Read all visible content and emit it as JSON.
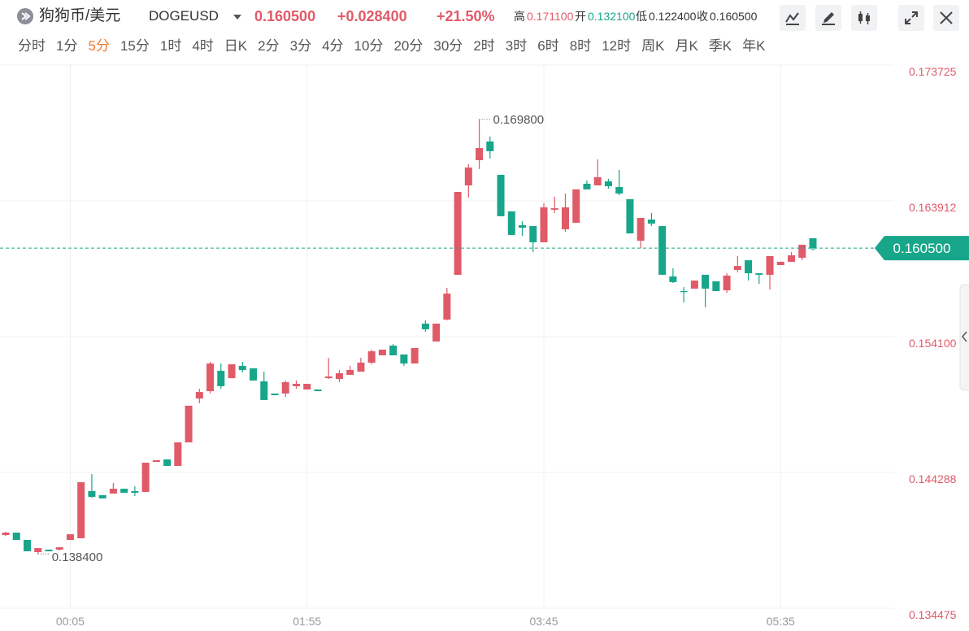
{
  "header": {
    "title": "狗狗币/美元",
    "symbol": "DOGEUSD",
    "price": "0.160500",
    "change": "+0.028400",
    "change_pct": "+21.50%",
    "stats": [
      {
        "label": "高",
        "value": "0.171100",
        "color": "#e05a68"
      },
      {
        "label": "开",
        "value": "0.132100",
        "color": "#17a68a"
      },
      {
        "label": "低",
        "value": "0.122400",
        "color": "#333333"
      },
      {
        "label": "收",
        "value": "0.160500",
        "color": "#333333"
      }
    ]
  },
  "intervals": [
    "分时",
    "1分",
    "5分",
    "15分",
    "1时",
    "4时",
    "日K",
    "2分",
    "3分",
    "4分",
    "10分",
    "20分",
    "30分",
    "2时",
    "3时",
    "6时",
    "8时",
    "12时",
    "周K",
    "月K",
    "季K",
    "年K"
  ],
  "active_interval": 2,
  "chart_data": {
    "type": "candlestick",
    "categories": [
      null,
      null,
      null,
      null,
      null,
      null,
      "00:05",
      null,
      null,
      null,
      null,
      null,
      null,
      null,
      null,
      null,
      null,
      null,
      null,
      null,
      null,
      null,
      null,
      null,
      null,
      null,
      null,
      null,
      "01:55",
      null,
      null,
      null,
      null,
      null,
      null,
      null,
      null,
      null,
      null,
      null,
      null,
      null,
      null,
      null,
      null,
      null,
      null,
      null,
      null,
      null,
      "03:45",
      null,
      null,
      null,
      null,
      null,
      null,
      null,
      null,
      null,
      null,
      null,
      null,
      null,
      null,
      null,
      null,
      null,
      null,
      null,
      null,
      null,
      "05:35",
      null,
      null,
      null
    ],
    "open": [
      0.13976,
      0.13994,
      0.13941,
      0.13853,
      0.13871,
      0.13871,
      0.13941,
      0.13953,
      0.14294,
      0.14264,
      0.14276,
      0.14311,
      0.14294,
      0.14288,
      0.14505,
      0.14523,
      0.14476,
      0.14646,
      0.14963,
      0.15016,
      0.15163,
      0.1511,
      0.15199,
      0.15181,
      0.15087,
      0.14999,
      0.14999,
      0.15052,
      0.15028,
      0.15028,
      0.1511,
      0.15104,
      0.15134,
      0.15157,
      0.15222,
      0.15275,
      0.15345,
      0.15281,
      0.15216,
      0.15504,
      0.15375,
      0.15533,
      0.15857,
      0.16503,
      0.16685,
      0.1682,
      0.16579,
      0.16315,
      0.16215,
      0.16209,
      0.16092,
      0.16327,
      0.16186,
      0.16233,
      0.16515,
      0.16503,
      0.16532,
      0.16491,
      0.16403,
      0.16103,
      0.16256,
      0.16209,
      0.15845,
      0.15739,
      0.15757,
      0.15857,
      0.1581,
      0.15745,
      0.15892,
      0.15962,
      0.15868,
      0.15857,
      0.15927,
      0.15951,
      0.1598,
      0.16121
    ],
    "high": [
      0.14,
      0.13994,
      0.13941,
      0.13882,
      0.13871,
      0.13888,
      0.13982,
      0.14358,
      0.14417,
      0.14264,
      0.14352,
      0.14311,
      0.14329,
      0.14499,
      0.14517,
      0.14523,
      0.14646,
      0.14911,
      0.15034,
      0.15228,
      0.15216,
      0.1521,
      0.15228,
      0.15181,
      0.15157,
      0.14999,
      0.15093,
      0.15093,
      0.15069,
      0.15028,
      0.15257,
      0.15169,
      0.15199,
      0.15257,
      0.15316,
      0.15316,
      0.15357,
      0.15281,
      0.15328,
      0.15528,
      0.15504,
      0.15763,
      0.16456,
      0.16656,
      0.1698,
      0.16856,
      0.16579,
      0.16315,
      0.16244,
      0.16209,
      0.16374,
      0.16421,
      0.16444,
      0.16474,
      0.16538,
      0.16691,
      0.1655,
      0.16615,
      0.16403,
      0.16268,
      0.16303,
      0.16209,
      0.15904,
      0.15768,
      0.15815,
      0.15857,
      0.1581,
      0.15868,
      0.15992,
      0.15962,
      0.15868,
      0.15992,
      0.15951,
      0.16021,
      0.16074,
      0.16121
    ],
    "low": [
      0.1397,
      0.13941,
      0.13859,
      0.1384,
      0.13859,
      0.13865,
      0.13941,
      0.13953,
      0.14246,
      0.14241,
      0.14276,
      0.14282,
      0.14258,
      0.14288,
      0.14505,
      0.14476,
      0.14476,
      0.14646,
      0.14928,
      0.14999,
      0.15034,
      0.1511,
      0.15151,
      0.15093,
      0.14952,
      0.14987,
      0.14975,
      0.15034,
      0.15028,
      0.15016,
      0.15104,
      0.15081,
      0.15134,
      0.15157,
      0.1521,
      0.15275,
      0.15275,
      0.15199,
      0.15216,
      0.15445,
      0.15375,
      0.15528,
      0.15857,
      0.16415,
      0.16621,
      0.16697,
      0.1628,
      0.16145,
      0.16139,
      0.16021,
      0.16092,
      0.16303,
      0.16168,
      0.16233,
      0.16474,
      0.16503,
      0.16479,
      0.16432,
      0.16156,
      0.1605,
      0.16209,
      0.15857,
      0.15798,
      0.15657,
      0.15757,
      0.15622,
      0.15739,
      0.15727,
      0.15874,
      0.15815,
      0.15792,
      0.15751,
      0.15927,
      0.15951,
      0.15962,
      0.1605
    ],
    "close": [
      0.13994,
      0.13941,
      0.13859,
      0.13882,
      0.13859,
      0.13888,
      0.13982,
      0.14358,
      0.14252,
      0.14241,
      0.14311,
      0.14282,
      0.14282,
      0.14499,
      0.14517,
      0.14476,
      0.14646,
      0.14911,
      0.1501,
      0.15216,
      0.15052,
      0.1521,
      0.15169,
      0.15093,
      0.14952,
      0.14987,
      0.15081,
      0.15069,
      0.15069,
      0.15016,
      0.15122,
      0.15146,
      0.15169,
      0.15222,
      0.15304,
      0.15316,
      0.15275,
      0.15216,
      0.15328,
      0.15463,
      0.15504,
      0.15721,
      0.16456,
      0.16632,
      0.16773,
      0.1675,
      0.1628,
      0.16145,
      0.16197,
      0.16092,
      0.16344,
      0.16338,
      0.16344,
      0.16474,
      0.16474,
      0.16562,
      0.16497,
      0.16444,
      0.16156,
      0.16268,
      0.16227,
      0.15857,
      0.15804,
      0.15733,
      0.15815,
      0.15757,
      0.15739,
      0.15851,
      0.15921,
      0.15868,
      0.15857,
      0.15992,
      0.15951,
      0.15998,
      0.16074,
      0.1605
    ],
    "up_color": "#e05a68",
    "down_color": "#17a68a",
    "ylim": [
      0.134475,
      0.173725
    ],
    "yticks": [
      0.134475,
      0.144288,
      {
        "value": 0.1541,
        "label": "0.154100"
      },
      0.163912,
      0.173725
    ],
    "grid": true,
    "high_label": "0.169800",
    "low_label": "0.138400",
    "last_label": "0.160500"
  }
}
